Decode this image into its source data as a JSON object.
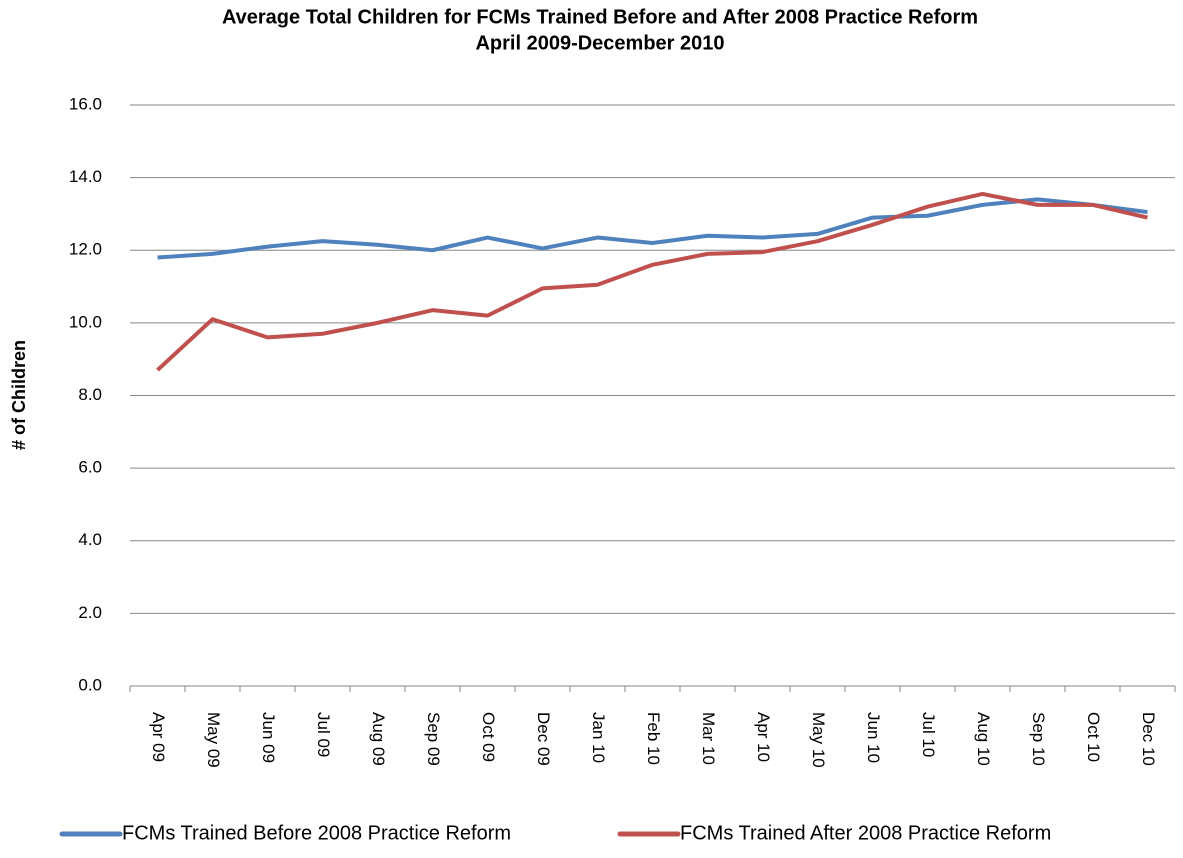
{
  "chart_data": {
    "type": "line",
    "title": "Average Total Children for FCMs Trained Before and After 2008 Practice Reform",
    "subtitle": "April 2009-December 2010",
    "y_label": "# of Children",
    "categories": [
      "Apr 09",
      "May 09",
      "Jun 09",
      "Jul 09",
      "Aug 09",
      "Sep 09",
      "Oct 09",
      "Dec 09",
      "Jan 10",
      "Feb 10",
      "Mar 10",
      "Apr 10",
      "May 10",
      "Jun 10",
      "Jul 10",
      "Aug 10",
      "Sep 10",
      "Oct 10",
      "Dec 10"
    ],
    "series": [
      {
        "name": "FCMs Trained Before 2008 Practice Reform",
        "color": "#4f81bd",
        "values": [
          11.8,
          11.9,
          12.1,
          12.25,
          12.15,
          12.0,
          12.35,
          12.05,
          12.35,
          12.2,
          12.4,
          12.35,
          12.45,
          12.9,
          12.95,
          13.25,
          13.4,
          13.25,
          13.05
        ]
      },
      {
        "name": "FCMs Trained After 2008 Practice Reform",
        "color": "#c0504d",
        "values": [
          8.7,
          10.1,
          9.6,
          9.7,
          10.0,
          10.35,
          10.2,
          10.95,
          11.05,
          11.6,
          11.9,
          11.95,
          12.25,
          12.7,
          13.2,
          13.55,
          13.25,
          13.25,
          12.9
        ]
      }
    ],
    "ylim": [
      0,
      16
    ],
    "yticks": [
      {
        "value": 0,
        "label": "0.0"
      },
      {
        "value": 2,
        "label": "2.0"
      },
      {
        "value": 4,
        "label": "4.0"
      },
      {
        "value": 6,
        "label": "6.0"
      },
      {
        "value": 8,
        "label": "8.0"
      },
      {
        "value": 10,
        "label": "10.0"
      },
      {
        "value": 12,
        "label": "12.0"
      },
      {
        "value": 14,
        "label": "14.0"
      },
      {
        "value": 16,
        "label": "16.0"
      }
    ],
    "grid": true,
    "legend": "bottom"
  }
}
